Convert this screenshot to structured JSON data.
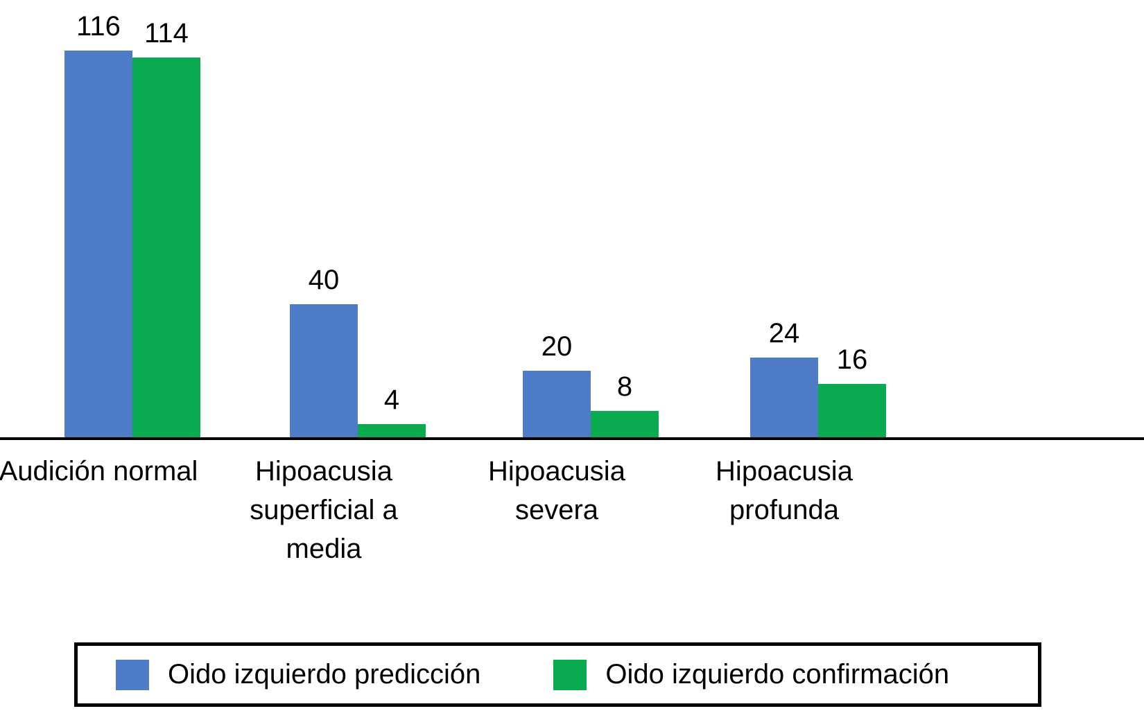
{
  "chart_data": {
    "type": "bar",
    "title": "",
    "xlabel": "",
    "ylabel": "",
    "ylim": [
      0,
      120
    ],
    "grid": false,
    "legend_position": "bottom-boxed",
    "bar_value_labels": true,
    "axis_color": "#000000",
    "text_color": "#000000",
    "categories": [
      "Audición normal",
      "Hipoacusia superficial a media",
      "Hipoacusia severa",
      "Hipoacusia profunda"
    ],
    "series": [
      {
        "name": "Oido izquierdo predicción",
        "color": "#4F7CC6",
        "values": [
          116,
          40,
          20,
          24
        ]
      },
      {
        "name": "Oido izquierdo confirmación",
        "color": "#0AAB50",
        "values": [
          114,
          4,
          8,
          16
        ]
      }
    ]
  }
}
